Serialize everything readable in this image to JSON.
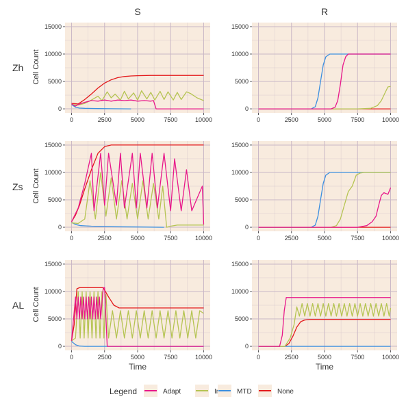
{
  "figure": {
    "column_headers": [
      "S",
      "R"
    ],
    "row_labels": [
      "Zh",
      "Zs",
      "AL"
    ],
    "y_axis_label": "Cell Count",
    "x_axis_label": "Time",
    "legend": {
      "title": "Legend",
      "items": [
        {
          "label": "Adapt",
          "color": "#e8178a"
        },
        {
          "label": "Int",
          "color": "#b5c452"
        },
        {
          "label": "MTD",
          "color": "#3b8fe0"
        },
        {
          "label": "None",
          "color": "#e31a1c"
        }
      ]
    },
    "panel_background": "#f8ebde",
    "grid_color": "#c9b7c6"
  },
  "chart_data": [
    {
      "type": "line",
      "row": "Zh",
      "column": "S",
      "xlim": [
        0,
        10000
      ],
      "ylim": [
        0,
        15000
      ],
      "xticks": [
        0,
        2500,
        5000,
        7500,
        10000
      ],
      "yticks": [
        0,
        5000,
        10000,
        15000
      ],
      "series": [
        {
          "name": "None",
          "x": [
            0,
            500,
            1000,
            1500,
            2000,
            2500,
            3000,
            3500,
            4000,
            4500,
            5000,
            6000,
            7000,
            8000,
            10000
          ],
          "y": [
            1000,
            900,
            1700,
            2700,
            3800,
            4700,
            5300,
            5700,
            5900,
            6000,
            6050,
            6100,
            6100,
            6100,
            6100
          ]
        },
        {
          "name": "MTD",
          "x": [
            0,
            300,
            600,
            1000,
            2000,
            3000,
            4500
          ],
          "y": [
            800,
            300,
            150,
            100,
            50,
            20,
            0
          ]
        },
        {
          "name": "Adapt",
          "x": [
            0,
            300,
            500,
            1000,
            1500,
            2000,
            2500,
            3000,
            3500,
            4000,
            4500,
            5000,
            5500,
            6000,
            6200,
            6400,
            10000
          ],
          "y": [
            900,
            500,
            800,
            1200,
            1500,
            1400,
            1600,
            1400,
            1600,
            1500,
            1600,
            1400,
            1500,
            1400,
            1500,
            0,
            0
          ]
        },
        {
          "name": "Int",
          "x": [
            0,
            500,
            1000,
            1500,
            2000,
            2300,
            2700,
            3000,
            3300,
            3700,
            4000,
            4300,
            4700,
            5000,
            5300,
            5700,
            6000,
            6300,
            6700,
            7000,
            7300,
            7700,
            8000,
            8300,
            8700,
            9000,
            9500,
            10000
          ],
          "y": [
            800,
            700,
            1000,
            1600,
            2300,
            1500,
            3100,
            2000,
            2700,
            1600,
            3200,
            1800,
            2900,
            1600,
            3300,
            1800,
            3000,
            1600,
            3200,
            1700,
            3100,
            1600,
            3000,
            1700,
            3100,
            2800,
            2000,
            1500
          ]
        }
      ]
    },
    {
      "type": "line",
      "row": "Zh",
      "column": "R",
      "xlim": [
        0,
        10000
      ],
      "ylim": [
        0,
        15000
      ],
      "xticks": [
        0,
        2500,
        5000,
        7500,
        10000
      ],
      "yticks": [
        0,
        5000,
        10000,
        15000
      ],
      "series": [
        {
          "name": "None",
          "x": [
            0,
            10000
          ],
          "y": [
            0,
            0
          ]
        },
        {
          "name": "MTD",
          "x": [
            0,
            4000,
            4300,
            4500,
            4700,
            4900,
            5100,
            5400,
            6000,
            10000
          ],
          "y": [
            0,
            0,
            400,
            2000,
            5000,
            8000,
            9500,
            10000,
            10000,
            10000
          ]
        },
        {
          "name": "Adapt",
          "x": [
            0,
            5500,
            5800,
            6000,
            6200,
            6400,
            6600,
            6800,
            7200,
            10000
          ],
          "y": [
            0,
            0,
            300,
            1500,
            4500,
            8000,
            9500,
            10000,
            10000,
            10000
          ]
        },
        {
          "name": "Int",
          "x": [
            0,
            7500,
            8500,
            9000,
            9300,
            9600,
            9800,
            10000
          ],
          "y": [
            0,
            0,
            100,
            600,
            1500,
            3000,
            4000,
            4100
          ]
        }
      ]
    },
    {
      "type": "line",
      "row": "Zs",
      "column": "S",
      "xlim": [
        0,
        10000
      ],
      "ylim": [
        0,
        15000
      ],
      "xticks": [
        0,
        2500,
        5000,
        7500,
        10000
      ],
      "yticks": [
        0,
        5000,
        10000,
        15000
      ],
      "series": [
        {
          "name": "None",
          "x": [
            0,
            300,
            600,
            1000,
            1500,
            2000,
            2500,
            3000,
            4000,
            5000,
            10000
          ],
          "y": [
            1000,
            2200,
            4000,
            7000,
            10500,
            13500,
            14700,
            15000,
            15000,
            15000,
            15000
          ]
        },
        {
          "name": "MTD",
          "x": [
            0,
            300,
            700,
            1500,
            3000,
            5000,
            7000
          ],
          "y": [
            900,
            500,
            300,
            200,
            100,
            50,
            0
          ]
        },
        {
          "name": "Adapt",
          "x": [
            0,
            500,
            1000,
            1500,
            1700,
            2200,
            2500,
            2800,
            3400,
            3700,
            4000,
            4600,
            4900,
            5200,
            5700,
            6100,
            6500,
            7000,
            7500,
            7800,
            8300,
            8700,
            9100,
            9900,
            10000
          ],
          "y": [
            1000,
            3500,
            8000,
            13500,
            3000,
            13500,
            4000,
            13500,
            4000,
            13500,
            3500,
            13500,
            3500,
            13500,
            3500,
            13500,
            3500,
            13500,
            3000,
            12500,
            3000,
            10500,
            3000,
            7500,
            500
          ]
        },
        {
          "name": "Int",
          "x": [
            0,
            500,
            1000,
            1400,
            1800,
            2200,
            2600,
            3000,
            3400,
            3800,
            4200,
            4600,
            5000,
            5400,
            5800,
            6200,
            6600,
            6900,
            7200,
            7500,
            8000,
            10000
          ],
          "y": [
            800,
            700,
            1500,
            8500,
            1500,
            10000,
            2000,
            9000,
            1500,
            8500,
            1500,
            8000,
            1500,
            8500,
            1500,
            8000,
            1500,
            7500,
            0,
            200,
            400,
            400
          ]
        }
      ]
    },
    {
      "type": "line",
      "row": "Zs",
      "column": "R",
      "xlim": [
        0,
        10000
      ],
      "ylim": [
        0,
        15000
      ],
      "xticks": [
        0,
        2500,
        5000,
        7500,
        10000
      ],
      "yticks": [
        0,
        5000,
        10000,
        15000
      ],
      "series": [
        {
          "name": "None",
          "x": [
            0,
            10000
          ],
          "y": [
            0,
            0
          ]
        },
        {
          "name": "MTD",
          "x": [
            0,
            4000,
            4300,
            4500,
            4700,
            4900,
            5100,
            5400,
            6000,
            10000
          ],
          "y": [
            0,
            0,
            400,
            2000,
            5000,
            8000,
            9500,
            10000,
            10000,
            10000
          ]
        },
        {
          "name": "Int",
          "x": [
            0,
            5500,
            5900,
            6200,
            6500,
            6800,
            7100,
            7400,
            7700,
            8000,
            10000
          ],
          "y": [
            0,
            0,
            300,
            1500,
            4000,
            6500,
            7500,
            9500,
            9900,
            10000,
            10000
          ]
        },
        {
          "name": "Adapt",
          "x": [
            0,
            7500,
            8200,
            8600,
            8900,
            9100,
            9300,
            9500,
            9800,
            10000
          ],
          "y": [
            0,
            0,
            300,
            1000,
            2000,
            4000,
            5800,
            6300,
            6000,
            7200
          ]
        }
      ]
    },
    {
      "type": "line",
      "row": "AL",
      "column": "S",
      "xlim": [
        0,
        10000
      ],
      "ylim": [
        0,
        15000
      ],
      "xticks": [
        0,
        2500,
        5000,
        7500,
        10000
      ],
      "yticks": [
        0,
        5000,
        10000,
        15000
      ],
      "series": [
        {
          "name": "None",
          "x": [
            0,
            200,
            400,
            600,
            2400,
            2800,
            3200,
            3600,
            10000
          ],
          "y": [
            1000,
            4000,
            10500,
            10700,
            10700,
            9000,
            7500,
            7000,
            7000
          ]
        },
        {
          "name": "MTD",
          "x": [
            0,
            300,
            600,
            1000,
            10000
          ],
          "y": [
            900,
            300,
            50,
            0,
            0
          ]
        },
        {
          "name": "Adapt",
          "x": [
            0,
            300,
            400,
            500,
            600,
            700,
            800,
            900,
            1000,
            1100,
            1200,
            1300,
            1400,
            1500,
            1600,
            1700,
            1800,
            1900,
            2000,
            2100,
            2200,
            2400,
            2500,
            2700,
            10000
          ],
          "y": [
            1000,
            9000,
            5000,
            9000,
            5000,
            9000,
            5000,
            9000,
            5000,
            9000,
            5000,
            9000,
            5000,
            9000,
            5000,
            9000,
            5000,
            9000,
            5000,
            9000,
            5000,
            10700,
            10700,
            0,
            0
          ]
        },
        {
          "name": "Int",
          "x": [
            0,
            300,
            500,
            650,
            800,
            950,
            1100,
            1250,
            1400,
            1550,
            1700,
            1850,
            2000,
            2150,
            2300,
            2450,
            2600,
            2800,
            3100,
            3400,
            3700,
            4000,
            4300,
            4600,
            4900,
            5200,
            5500,
            5800,
            6100,
            6400,
            6700,
            7000,
            7300,
            7600,
            7900,
            8200,
            8500,
            8800,
            9100,
            9400,
            9700,
            10000
          ],
          "y": [
            1000,
            1500,
            10000,
            1500,
            10000,
            1500,
            10000,
            1500,
            10000,
            1500,
            10000,
            1500,
            10000,
            1500,
            10000,
            1500,
            9500,
            1500,
            6500,
            1500,
            6500,
            1500,
            6500,
            1500,
            6500,
            1500,
            6500,
            1500,
            6500,
            1500,
            6500,
            1500,
            6500,
            1500,
            6500,
            1500,
            6500,
            1500,
            6500,
            1500,
            6500,
            6000
          ]
        }
      ]
    },
    {
      "type": "line",
      "row": "AL",
      "column": "R",
      "xlim": [
        0,
        10000
      ],
      "ylim": [
        0,
        15000
      ],
      "xticks": [
        0,
        2500,
        5000,
        7500,
        10000
      ],
      "yticks": [
        0,
        5000,
        10000,
        15000
      ],
      "series": [
        {
          "name": "MTD",
          "x": [
            0,
            10000
          ],
          "y": [
            0,
            0
          ]
        },
        {
          "name": "Adapt",
          "x": [
            0,
            1600,
            1800,
            1950,
            2100,
            10000
          ],
          "y": [
            0,
            0,
            2000,
            6500,
            8900,
            8900
          ]
        },
        {
          "name": "None",
          "x": [
            0,
            2000,
            2300,
            2600,
            2900,
            3200,
            3500,
            4000,
            10000
          ],
          "y": [
            0,
            0,
            500,
            1800,
            3500,
            4500,
            4800,
            4900,
            4900
          ]
        },
        {
          "name": "Int",
          "x": [
            0,
            2000,
            2400,
            2700,
            2900,
            3100,
            3300,
            3500,
            3700,
            3900,
            4100,
            4300,
            4500,
            4700,
            4900,
            5100,
            5300,
            5500,
            5700,
            5900,
            6100,
            6300,
            6500,
            6700,
            6900,
            7100,
            7300,
            7500,
            7700,
            7900,
            8100,
            8300,
            8500,
            8700,
            8900,
            9100,
            9300,
            9500,
            9700,
            9900,
            10000
          ],
          "y": [
            0,
            0,
            1500,
            4000,
            7200,
            5500,
            7800,
            5500,
            7800,
            5500,
            7800,
            5500,
            7800,
            5500,
            7800,
            5500,
            7800,
            5500,
            7800,
            5500,
            7800,
            5500,
            7800,
            5500,
            7800,
            5500,
            7800,
            5500,
            7800,
            5500,
            7800,
            5500,
            7800,
            5500,
            7800,
            5500,
            7800,
            5500,
            7800,
            5500,
            7000
          ]
        }
      ]
    }
  ]
}
